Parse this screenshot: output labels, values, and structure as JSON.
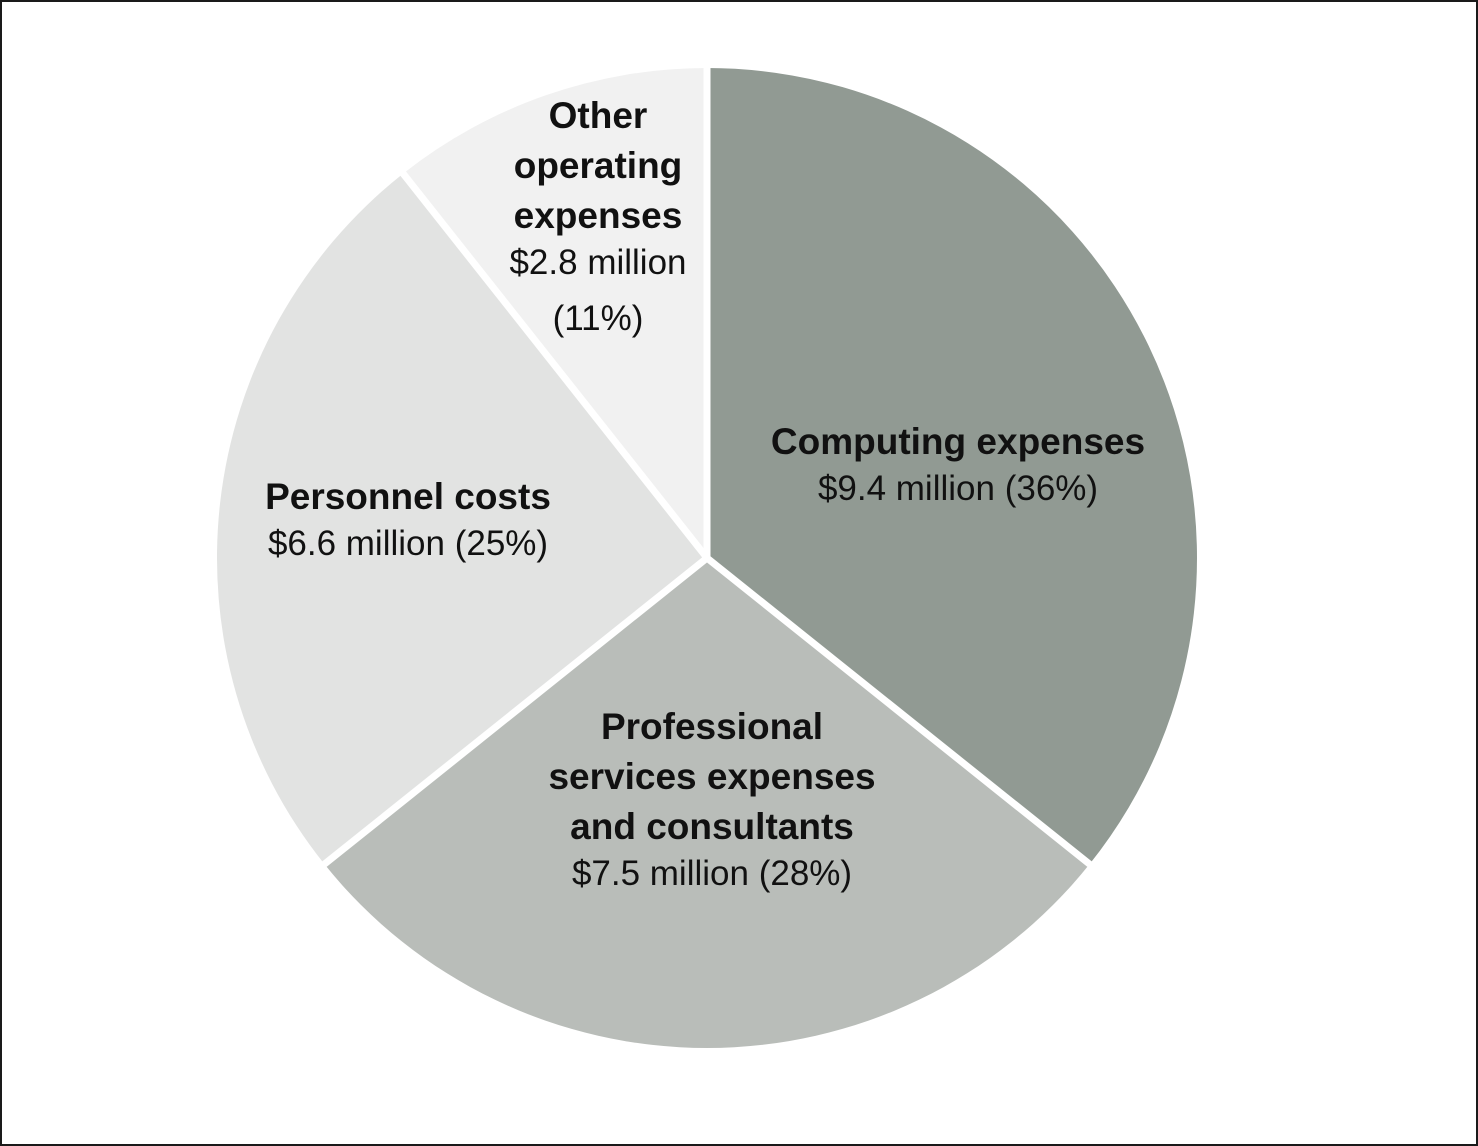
{
  "chart_data": {
    "type": "pie",
    "title": "",
    "unit": "$ million",
    "slices": [
      {
        "key": "computing",
        "label": "Computing expenses",
        "value": 9.4,
        "percent": 36,
        "value_text": "$9.4 million (36%)",
        "color": "#919a93"
      },
      {
        "key": "professional",
        "label": "Professional services expenses and consultants",
        "value": 7.5,
        "percent": 28,
        "value_text": "$7.5 million (28%)",
        "color": "#b9bdb9"
      },
      {
        "key": "personnel",
        "label": "Personnel costs",
        "value": 6.6,
        "percent": 25,
        "value_text": "$6.6 million (25%)",
        "color": "#e2e3e2"
      },
      {
        "key": "other",
        "label": "Other operating expenses",
        "value": 2.8,
        "percent": 11,
        "value_text": "$2.8 million (11%)",
        "color": "#f1f1f1"
      }
    ],
    "start_angle": "12 o'clock",
    "direction": "clockwise",
    "legend": "none",
    "labels": "inside-slices"
  }
}
